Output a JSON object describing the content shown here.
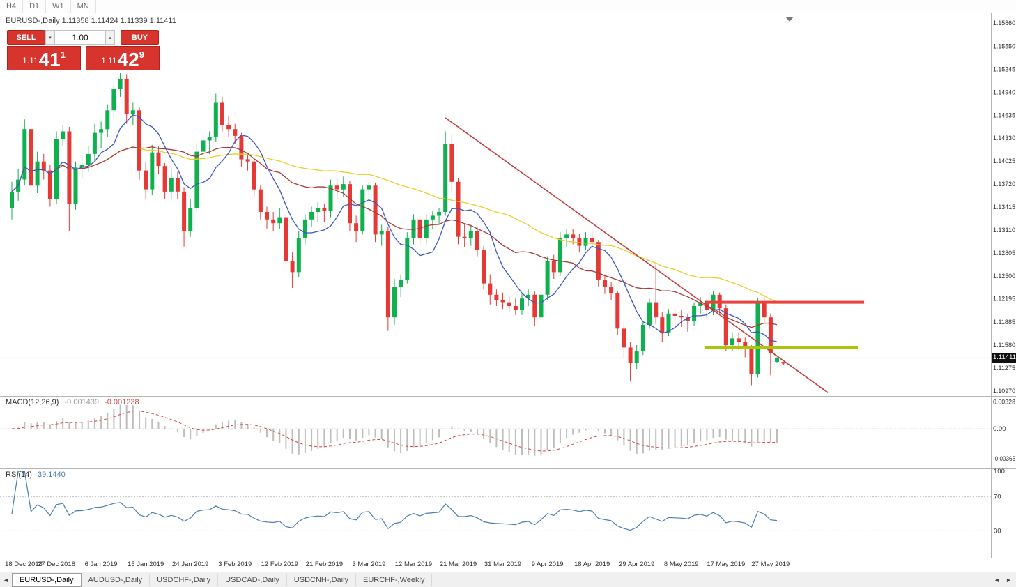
{
  "colors": {
    "accent_red": "#d6342c",
    "accent_red_dark": "#a8241d",
    "candle_up": "#0fb14f",
    "candle_down": "#e53935",
    "ma_fast_blue": "#3b55c4",
    "ma_mid_darkred": "#a83838",
    "ma_slow_yellow": "#e8cf2a",
    "macd_histogram": "#bdbdbd",
    "macd_signal": "#cf4646",
    "rsi_line": "#4a7db5",
    "trendline": "#c43b3b",
    "resistance_line": "#e8423c",
    "support_line": "#a9c70a",
    "bid_line": "#d6d6d6",
    "price_tag_bg": "#101010"
  },
  "toolbar": {
    "timeframes": [
      "H4",
      "D1",
      "W1",
      "MN"
    ]
  },
  "chart_header": {
    "text": "EURUSD-,Daily  1.11358 1.11424 1.11339 1.11411"
  },
  "trade_panel": {
    "sell_label": "SELL",
    "buy_label": "BUY",
    "volume": "1.00",
    "sell_price_prefix": "1.11",
    "sell_price_main": "41",
    "sell_price_sup": "1",
    "buy_price_prefix": "1.11",
    "buy_price_main": "42",
    "buy_price_sup": "9"
  },
  "price_axis": {
    "labels": [
      "1.15860",
      "1.15550",
      "1.15245",
      "1.14940",
      "1.14635",
      "1.14330",
      "1.14025",
      "1.13720",
      "1.13415",
      "1.13110",
      "1.12805",
      "1.12500",
      "1.12195",
      "1.11885",
      "1.11580",
      "1.11275",
      "1.10970"
    ],
    "current_price": "1.11411"
  },
  "tabs": [
    {
      "label": "EURUSD-,Daily",
      "active": true
    },
    {
      "label": "AUDUSD-,Daily",
      "active": false
    },
    {
      "label": "USDCHF-,Daily",
      "active": false
    },
    {
      "label": "USDCAD-,Daily",
      "active": false
    },
    {
      "label": "USDCNH-,Daily",
      "active": false
    },
    {
      "label": "EURCHF-,Weekly",
      "active": false
    }
  ],
  "chart_data": {
    "type": "candlestick",
    "title": "EURUSD-,Daily",
    "y_axis": {
      "min": 1.1097,
      "max": 1.1586
    },
    "x_axis": {
      "tick_labels": [
        "18 Dec 2018",
        "27 Dec 2018",
        "6 Jan 2019",
        "15 Jan 2019",
        "24 Jan 2019",
        "3 Feb 2019",
        "12 Feb 2019",
        "21 Feb 2019",
        "3 Mar 2019",
        "12 Mar 2019",
        "21 Mar 2019",
        "31 Mar 2019",
        "9 Apr 2019",
        "18 Apr 2019",
        "29 Apr 2019",
        "8 May 2019",
        "17 May 2019",
        "27 May 2019"
      ],
      "tick_bar_indexes": [
        0,
        7,
        14,
        21,
        28,
        35,
        42,
        49,
        56,
        63,
        70,
        77,
        84,
        91,
        98,
        105,
        112,
        119
      ]
    },
    "ohlc": [
      [
        1.134,
        1.1375,
        1.1325,
        1.1362
      ],
      [
        1.1362,
        1.1392,
        1.135,
        1.1378
      ],
      [
        1.1378,
        1.1458,
        1.137,
        1.1445
      ],
      [
        1.1445,
        1.1452,
        1.1358,
        1.137
      ],
      [
        1.137,
        1.1415,
        1.136,
        1.1402
      ],
      [
        1.1402,
        1.1412,
        1.1378,
        1.139
      ],
      [
        1.139,
        1.1398,
        1.1342,
        1.1352
      ],
      [
        1.1352,
        1.1442,
        1.1345,
        1.1432
      ],
      [
        1.1432,
        1.145,
        1.1422,
        1.1442
      ],
      [
        1.1442,
        1.1448,
        1.131,
        1.1346
      ],
      [
        1.1346,
        1.1402,
        1.1338,
        1.1394
      ],
      [
        1.1394,
        1.141,
        1.138,
        1.1398
      ],
      [
        1.1398,
        1.1422,
        1.1388,
        1.1412
      ],
      [
        1.1412,
        1.1452,
        1.1402,
        1.144
      ],
      [
        1.144,
        1.1455,
        1.142,
        1.1445
      ],
      [
        1.1445,
        1.1478,
        1.1435,
        1.147
      ],
      [
        1.147,
        1.1505,
        1.146,
        1.1498
      ],
      [
        1.1498,
        1.152,
        1.1488,
        1.1512
      ],
      [
        1.1512,
        1.1518,
        1.1452,
        1.1465
      ],
      [
        1.1465,
        1.148,
        1.145,
        1.147
      ],
      [
        1.147,
        1.1475,
        1.1378,
        1.139
      ],
      [
        1.139,
        1.1402,
        1.1352,
        1.1365
      ],
      [
        1.1365,
        1.1424,
        1.1358,
        1.1414
      ],
      [
        1.1414,
        1.1422,
        1.1386,
        1.1396
      ],
      [
        1.1396,
        1.14,
        1.1352,
        1.1362
      ],
      [
        1.1362,
        1.1392,
        1.1352,
        1.138
      ],
      [
        1.138,
        1.1388,
        1.1352,
        1.1362
      ],
      [
        1.1362,
        1.1368,
        1.1289,
        1.131
      ],
      [
        1.131,
        1.1352,
        1.1302,
        1.134
      ],
      [
        1.134,
        1.1425,
        1.1335,
        1.1415
      ],
      [
        1.1415,
        1.144,
        1.1405,
        1.143
      ],
      [
        1.143,
        1.1442,
        1.1412,
        1.1435
      ],
      [
        1.1435,
        1.1492,
        1.1428,
        1.148
      ],
      [
        1.148,
        1.1488,
        1.1442,
        1.145
      ],
      [
        1.145,
        1.1462,
        1.1435,
        1.1445
      ],
      [
        1.1445,
        1.1452,
        1.1425,
        1.1436
      ],
      [
        1.1436,
        1.144,
        1.1395,
        1.1405
      ],
      [
        1.1405,
        1.1412,
        1.139,
        1.1402
      ],
      [
        1.1402,
        1.1406,
        1.1355,
        1.1365
      ],
      [
        1.1365,
        1.137,
        1.1325,
        1.1335
      ],
      [
        1.1335,
        1.1342,
        1.1312,
        1.1325
      ],
      [
        1.1325,
        1.1335,
        1.131,
        1.132
      ],
      [
        1.132,
        1.134,
        1.1312,
        1.1328
      ],
      [
        1.1328,
        1.1332,
        1.1258,
        1.127
      ],
      [
        1.127,
        1.1282,
        1.1234,
        1.1255
      ],
      [
        1.1255,
        1.131,
        1.1248,
        1.13
      ],
      [
        1.13,
        1.1332,
        1.1292,
        1.1325
      ],
      [
        1.1325,
        1.1342,
        1.1315,
        1.1335
      ],
      [
        1.1335,
        1.1348,
        1.1322,
        1.134
      ],
      [
        1.134,
        1.1346,
        1.1322,
        1.1336
      ],
      [
        1.1336,
        1.1378,
        1.1328,
        1.137
      ],
      [
        1.137,
        1.138,
        1.1352,
        1.1365
      ],
      [
        1.1365,
        1.1382,
        1.1355,
        1.1372
      ],
      [
        1.1372,
        1.1376,
        1.131,
        1.132
      ],
      [
        1.132,
        1.133,
        1.1295,
        1.131
      ],
      [
        1.131,
        1.137,
        1.1305,
        1.1365
      ],
      [
        1.1365,
        1.1375,
        1.135,
        1.137
      ],
      [
        1.137,
        1.1374,
        1.1295,
        1.1305
      ],
      [
        1.1305,
        1.1318,
        1.129,
        1.131
      ],
      [
        1.131,
        1.1315,
        1.1177,
        1.1195
      ],
      [
        1.1195,
        1.1246,
        1.1185,
        1.1235
      ],
      [
        1.1235,
        1.1252,
        1.1222,
        1.1245
      ],
      [
        1.1245,
        1.1308,
        1.124,
        1.13
      ],
      [
        1.13,
        1.1332,
        1.1292,
        1.1325
      ],
      [
        1.1325,
        1.133,
        1.1292,
        1.13
      ],
      [
        1.13,
        1.1332,
        1.1292,
        1.1325
      ],
      [
        1.1325,
        1.1336,
        1.1312,
        1.133
      ],
      [
        1.133,
        1.134,
        1.1318,
        1.1335
      ],
      [
        1.1335,
        1.1442,
        1.133,
        1.1425
      ],
      [
        1.1425,
        1.1438,
        1.1362,
        1.1375
      ],
      [
        1.1375,
        1.138,
        1.1292,
        1.1302
      ],
      [
        1.1302,
        1.132,
        1.1288,
        1.13
      ],
      [
        1.13,
        1.1318,
        1.129,
        1.131
      ],
      [
        1.131,
        1.1315,
        1.1276,
        1.1285
      ],
      [
        1.1285,
        1.129,
        1.1232,
        1.124
      ],
      [
        1.124,
        1.1252,
        1.1212,
        1.1225
      ],
      [
        1.1225,
        1.1232,
        1.121,
        1.1218
      ],
      [
        1.1218,
        1.1228,
        1.1206,
        1.1215
      ],
      [
        1.1215,
        1.1224,
        1.1202,
        1.121
      ],
      [
        1.121,
        1.122,
        1.1198,
        1.1205
      ],
      [
        1.1205,
        1.1228,
        1.1198,
        1.122
      ],
      [
        1.122,
        1.1232,
        1.121,
        1.1225
      ],
      [
        1.1225,
        1.123,
        1.1183,
        1.1195
      ],
      [
        1.1195,
        1.123,
        1.119,
        1.1225
      ],
      [
        1.1225,
        1.1276,
        1.1218,
        1.127
      ],
      [
        1.127,
        1.1278,
        1.1246,
        1.1255
      ],
      [
        1.1255,
        1.1308,
        1.125,
        1.13
      ],
      [
        1.13,
        1.1312,
        1.1288,
        1.1305
      ],
      [
        1.1305,
        1.1312,
        1.1292,
        1.13
      ],
      [
        1.13,
        1.1306,
        1.1282,
        1.129
      ],
      [
        1.129,
        1.1308,
        1.1284,
        1.13
      ],
      [
        1.13,
        1.131,
        1.1288,
        1.1295
      ],
      [
        1.1295,
        1.1298,
        1.1235,
        1.1245
      ],
      [
        1.1245,
        1.1252,
        1.1226,
        1.1235
      ],
      [
        1.1235,
        1.1242,
        1.1218,
        1.1227
      ],
      [
        1.1227,
        1.123,
        1.1172,
        1.118
      ],
      [
        1.118,
        1.1188,
        1.1141,
        1.1155
      ],
      [
        1.1155,
        1.1162,
        1.1111,
        1.1135
      ],
      [
        1.1135,
        1.1158,
        1.1126,
        1.115
      ],
      [
        1.115,
        1.119,
        1.1145,
        1.1185
      ],
      [
        1.1185,
        1.122,
        1.118,
        1.1215
      ],
      [
        1.1215,
        1.1265,
        1.1186,
        1.1195
      ],
      [
        1.1195,
        1.1202,
        1.1162,
        1.1175
      ],
      [
        1.1175,
        1.1206,
        1.117,
        1.12
      ],
      [
        1.12,
        1.1208,
        1.1182,
        1.1197
      ],
      [
        1.1197,
        1.1205,
        1.1182,
        1.1195
      ],
      [
        1.1195,
        1.12,
        1.1176,
        1.119
      ],
      [
        1.119,
        1.1215,
        1.1184,
        1.121
      ],
      [
        1.121,
        1.1222,
        1.12,
        1.1215
      ],
      [
        1.1215,
        1.122,
        1.1192,
        1.1205
      ],
      [
        1.1205,
        1.123,
        1.1198,
        1.1225
      ],
      [
        1.1225,
        1.1228,
        1.12,
        1.1207
      ],
      [
        1.1207,
        1.1212,
        1.115,
        1.1158
      ],
      [
        1.1158,
        1.1175,
        1.115,
        1.1167
      ],
      [
        1.1167,
        1.1174,
        1.1152,
        1.1162
      ],
      [
        1.1162,
        1.1168,
        1.1142,
        1.1153
      ],
      [
        1.1153,
        1.1158,
        1.1105,
        1.112
      ],
      [
        1.112,
        1.122,
        1.1115,
        1.1215
      ],
      [
        1.1215,
        1.1222,
        1.1188,
        1.1195
      ],
      [
        1.1195,
        1.12,
        1.1118,
        1.1147
      ],
      [
        1.1136,
        1.1142,
        1.1134,
        1.1141
      ]
    ],
    "moving_averages": [
      {
        "period": 50,
        "color": "#e8cf2a"
      },
      {
        "period": 21,
        "color": "#a83838"
      },
      {
        "period": 8,
        "color": "#3b55c4"
      }
    ],
    "objects": {
      "trendline": {
        "from_bar": 68,
        "from_price": 1.146,
        "to_bar": 128,
        "to_price": 1.1095
      },
      "resistance_line": {
        "price": 1.1215,
        "from_bar": 109,
        "to_bar": 134
      },
      "support_line": {
        "price": 1.1155,
        "from_bar": 109,
        "to_bar": 133
      }
    },
    "current_bid": 1.11411,
    "indicators": {
      "macd": {
        "label": "MACD(12,26,9)",
        "fast": 12,
        "slow": 26,
        "signal": 9,
        "value_macd": "-0.001439",
        "value_signal": "-0.001238",
        "axis_labels": [
          "0.00328",
          "0.00",
          "-0.00365"
        ],
        "axis_values": [
          0.00328,
          0,
          -0.00365
        ]
      },
      "rsi": {
        "label": "RSI(14)",
        "period": 14,
        "value": "39.1440",
        "axis_labels": [
          "100",
          "70",
          "30"
        ],
        "axis_values": [
          100,
          70,
          30
        ],
        "level_lines": [
          70,
          30
        ]
      }
    }
  }
}
